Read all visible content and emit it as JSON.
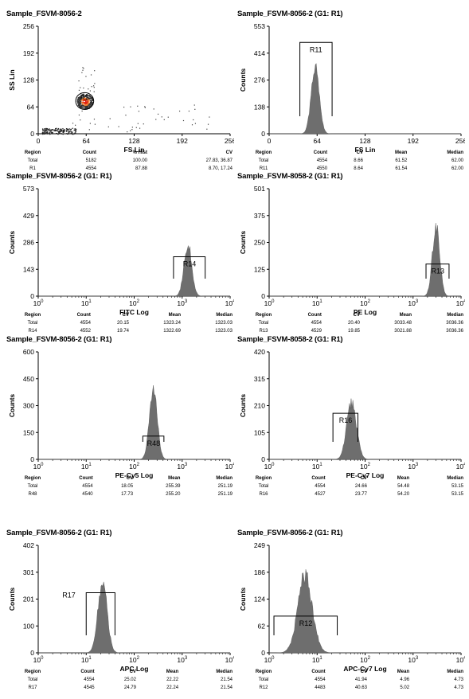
{
  "chart_data": [
    {
      "type": "scatter",
      "title": "Sample_FSVM-8056-2",
      "xlabel": "FS Lin",
      "ylabel": "SS Lin",
      "xlim": [
        0,
        256
      ],
      "ylim": [
        0,
        256
      ],
      "xticks": [
        "0",
        "64",
        "128",
        "192",
        "256"
      ],
      "yticks": [
        "0",
        "64",
        "128",
        "192",
        "256"
      ],
      "gate": {
        "label": "R1",
        "cx": 62,
        "cy": 78,
        "rx": 12,
        "ry": 20
      },
      "stats": {
        "headers": [
          "Region",
          "Count",
          "% Hist",
          "CV"
        ],
        "rows": [
          [
            "Total",
            "5182",
            "100.00",
            "27.83, 36.87"
          ],
          [
            "R1",
            "4554",
            "87.88",
            "8.70, 17.24"
          ]
        ]
      }
    },
    {
      "type": "histogram",
      "title": "Sample_FSVM-8056-2 (G1: R1)",
      "xlabel": "FS Lin",
      "ylabel": "Counts",
      "scale": "linear",
      "xlim": [
        0,
        256
      ],
      "xticks": [
        "0",
        "64",
        "128",
        "192",
        "256"
      ],
      "yticks": [
        "0",
        "138",
        "276",
        "414",
        "553"
      ],
      "ymax": 553,
      "peak": {
        "center": 61.5,
        "sigma": 5.3,
        "height": 360
      },
      "gate": {
        "label": "R11",
        "x1": 41,
        "x2": 84,
        "y": 470
      },
      "stats": {
        "headers": [
          "Region",
          "Count",
          "CV",
          "Mean",
          "Median"
        ],
        "rows": [
          [
            "Total",
            "4554",
            "8.66",
            "61.52",
            "62.00"
          ],
          [
            "R11",
            "4550",
            "8.64",
            "61.54",
            "62.00"
          ]
        ]
      }
    },
    {
      "type": "histogram",
      "title": "Sample_FSVM-8056-2 (G1: R1)",
      "xlabel": "FITC Log",
      "ylabel": "Counts",
      "scale": "log",
      "xlim": [
        0,
        4
      ],
      "xticks": [
        "10",
        "10",
        "10",
        "10",
        "10"
      ],
      "xexps": [
        "0",
        "1",
        "2",
        "3",
        "4"
      ],
      "yticks": [
        "0",
        "143",
        "286",
        "429",
        "573"
      ],
      "ymax": 573,
      "peak": {
        "center": 3.12,
        "sigma": 0.08,
        "height": 280
      },
      "gate": {
        "label": "R14",
        "x1": 2.82,
        "x2": 3.48,
        "y": 210
      },
      "stats": {
        "headers": [
          "Region",
          "Count",
          "CV",
          "Mean",
          "Median"
        ],
        "rows": [
          [
            "Total",
            "4554",
            "20.15",
            "1323.24",
            "1323.03"
          ],
          [
            "R14",
            "4552",
            "19.74",
            "1322.69",
            "1323.03"
          ]
        ]
      }
    },
    {
      "type": "histogram",
      "title": "Sample_FSVM-8058-2 (G1: R1)",
      "xlabel": "PE Log",
      "ylabel": "Counts",
      "scale": "log",
      "xlim": [
        0,
        4
      ],
      "xticks": [
        "10",
        "10",
        "10",
        "10",
        "10"
      ],
      "xexps": [
        "0",
        "1",
        "2",
        "3",
        "4"
      ],
      "yticks": [
        "0",
        "125",
        "250",
        "375",
        "501"
      ],
      "ymax": 501,
      "peak": {
        "center": 3.48,
        "sigma": 0.075,
        "height": 335
      },
      "gate": {
        "label": "R13",
        "x1": 3.27,
        "x2": 3.75,
        "y": 150
      },
      "stats": {
        "headers": [
          "Region",
          "Count",
          "CV",
          "Mean",
          "Median"
        ],
        "rows": [
          [
            "Total",
            "4554",
            "20.40",
            "3033.48",
            "3036.36"
          ],
          [
            "R13",
            "4529",
            "19.85",
            "3021.88",
            "3036.36"
          ]
        ]
      }
    },
    {
      "type": "histogram",
      "title": "Sample_FSVM-8056-2 (G1: R1)",
      "xlabel": "PE-Cy5 Log",
      "ylabel": "Counts",
      "scale": "log",
      "xlim": [
        0,
        4
      ],
      "xticks": [
        "10",
        "10",
        "10",
        "10",
        "10"
      ],
      "xexps": [
        "0",
        "1",
        "2",
        "3",
        "4"
      ],
      "yticks": [
        "0",
        "150",
        "300",
        "450",
        "600"
      ],
      "ymax": 600,
      "peak": {
        "center": 2.4,
        "sigma": 0.08,
        "height": 395
      },
      "gate": {
        "label": "R48",
        "x1": 2.18,
        "x2": 2.62,
        "y": 130
      },
      "stats": {
        "headers": [
          "Region",
          "Count",
          "CV",
          "Mean",
          "Median"
        ],
        "rows": [
          [
            "Total",
            "4554",
            "18.05",
            "255.39",
            "251.19"
          ],
          [
            "R48",
            "4540",
            "17.73",
            "255.20",
            "251.19"
          ]
        ]
      }
    },
    {
      "type": "histogram",
      "title": "Sample_FSVM-8058-2 (G1: R1)",
      "xlabel": "PE-Cy7 Log",
      "ylabel": "Counts",
      "scale": "log",
      "xlim": [
        0,
        4
      ],
      "xticks": [
        "10",
        "10",
        "10",
        "10",
        "10"
      ],
      "xexps": [
        "0",
        "1",
        "2",
        "3",
        "4"
      ],
      "yticks": [
        "0",
        "105",
        "210",
        "315",
        "420"
      ],
      "ymax": 420,
      "peak": {
        "center": 1.72,
        "sigma": 0.1,
        "height": 225
      },
      "gate": {
        "label": "R16",
        "x1": 1.33,
        "x2": 1.85,
        "y": 180
      },
      "stats": {
        "headers": [
          "Region",
          "Count",
          "CV",
          "Mean",
          "Median"
        ],
        "rows": [
          [
            "Total",
            "4554",
            "24.66",
            "54.48",
            "53.15"
          ],
          [
            "R16",
            "4527",
            "23.77",
            "54.20",
            "53.15"
          ]
        ]
      }
    },
    {
      "type": "histogram",
      "title": "Sample_FSVM-8056-2 (G1: R1)",
      "xlabel": "APC Log",
      "ylabel": "Counts",
      "scale": "log",
      "xlim": [
        0,
        4
      ],
      "xticks": [
        "10",
        "10",
        "10",
        "10",
        "10"
      ],
      "xexps": [
        "0",
        "1",
        "2",
        "3",
        "4"
      ],
      "yticks": [
        "0",
        "100",
        "201",
        "301",
        "402"
      ],
      "ymax": 402,
      "peak": {
        "center": 1.34,
        "sigma": 0.095,
        "height": 265
      },
      "gate": {
        "label": "R17",
        "x1": 1.0,
        "x2": 1.6,
        "y": 225
      },
      "stats": {
        "headers": [
          "Region",
          "Count",
          "CV",
          "Mean",
          "Median"
        ],
        "rows": [
          [
            "Total",
            "4554",
            "25.02",
            "22.22",
            "21.54"
          ],
          [
            "R17",
            "4545",
            "24.79",
            "22.24",
            "21.54"
          ]
        ]
      }
    },
    {
      "type": "histogram",
      "title": "Sample_FSVM-8056-2 (G1: R1)",
      "xlabel": "APC-Cy7 Log",
      "ylabel": "Counts",
      "scale": "log",
      "xlim": [
        0,
        4
      ],
      "xticks": [
        "10",
        "10",
        "10",
        "10",
        "10"
      ],
      "xexps": [
        "0",
        "1",
        "2",
        "3",
        "4"
      ],
      "yticks": [
        "0",
        "62",
        "124",
        "186",
        "249"
      ],
      "ymax": 249,
      "peak": {
        "center": 0.75,
        "sigma": 0.15,
        "height": 178
      },
      "gate": {
        "label": "R12",
        "x1": 0.1,
        "x2": 1.42,
        "y": 85
      },
      "stats": {
        "headers": [
          "Region",
          "Count",
          "CV",
          "Mean",
          "Median"
        ],
        "rows": [
          [
            "Total",
            "4554",
            "41.94",
            "4.96",
            "4.73"
          ],
          [
            "R12",
            "4483",
            "40.63",
            "5.02",
            "4.73"
          ]
        ]
      }
    }
  ]
}
